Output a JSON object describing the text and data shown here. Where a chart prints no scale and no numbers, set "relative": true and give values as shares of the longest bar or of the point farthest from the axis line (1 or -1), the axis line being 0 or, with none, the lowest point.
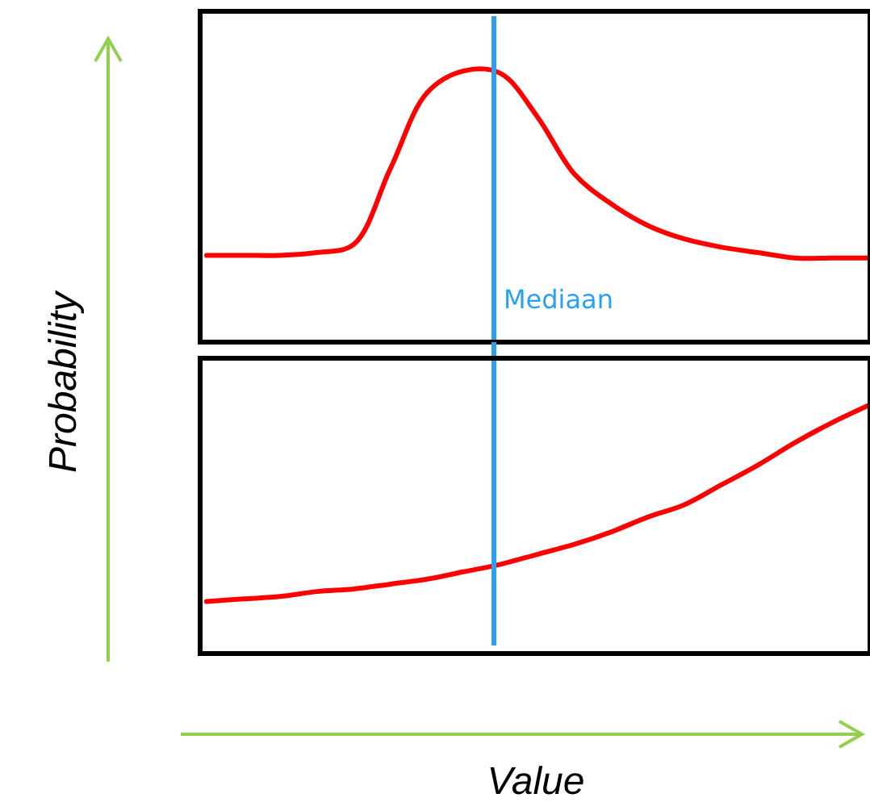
{
  "chart_data": [
    {
      "type": "line",
      "ylabel": "Probability",
      "relative": true,
      "marker": "none",
      "line_style": "solid",
      "annotations": [
        "Mediaan"
      ],
      "categories": [
        null,
        null,
        null,
        null,
        null,
        null,
        null,
        null,
        null,
        null,
        null,
        null,
        null,
        null,
        null,
        null,
        null,
        null,
        null
      ],
      "series": [
        {
          "color": "#ff0000",
          "values": [
            0.32,
            0.32,
            0.32,
            0.33,
            0.36,
            0.64,
            0.92,
            1,
            0.99,
            0.83,
            0.62,
            0.51,
            0.43,
            0.38,
            0.35,
            0.33,
            0.31,
            0.31,
            0.31
          ]
        }
      ]
    },
    {
      "type": "line",
      "xlabel": "Value",
      "relative": true,
      "marker": "none",
      "line_style": "solid",
      "categories": [
        null,
        null,
        null,
        null,
        null,
        null,
        null,
        null,
        null,
        null,
        null,
        null,
        null,
        null,
        null,
        null,
        null,
        null,
        null
      ],
      "series": [
        {
          "color": "#ff0000",
          "values": [
            0.21,
            0.22,
            0.23,
            0.25,
            0.26,
            0.28,
            0.3,
            0.33,
            0.36,
            0.4,
            0.44,
            0.49,
            0.55,
            0.6,
            0.68,
            0.76,
            0.85,
            0.93,
            1
          ]
        }
      ]
    }
  ]
}
